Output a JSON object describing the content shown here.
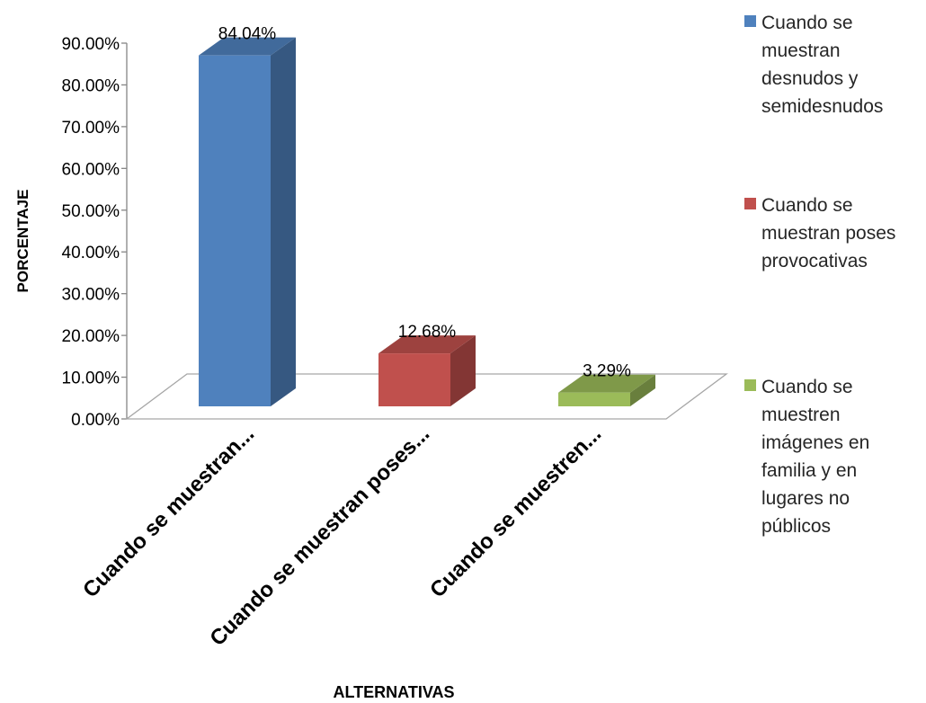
{
  "chart_data": {
    "type": "bar",
    "style": "3d-clustered-column",
    "categories": [
      "Cuando se muestran...",
      "Cuando se muestran poses...",
      "Cuando se muestren..."
    ],
    "values": [
      84.04,
      12.68,
      3.29
    ],
    "data_labels": [
      "84.04%",
      "12.68%",
      "3.29%"
    ],
    "colors": [
      "#4f81bd",
      "#c0504d",
      "#9bbb59"
    ],
    "xlabel": "ALTERNATIVAS",
    "ylabel": "PORCENTAJE",
    "ylim": [
      0,
      90
    ],
    "yticks": [
      "0.00%",
      "10.00%",
      "20.00%",
      "30.00%",
      "40.00%",
      "50.00%",
      "60.00%",
      "70.00%",
      "80.00%",
      "90.00%"
    ],
    "grid": false,
    "legend_position": "right",
    "legend": [
      "Cuando se muestran desnudos y semidesnudos",
      "Cuando se muestran poses provocativas",
      "Cuando se muestren imágenes en familia y en lugares no públicos"
    ]
  }
}
